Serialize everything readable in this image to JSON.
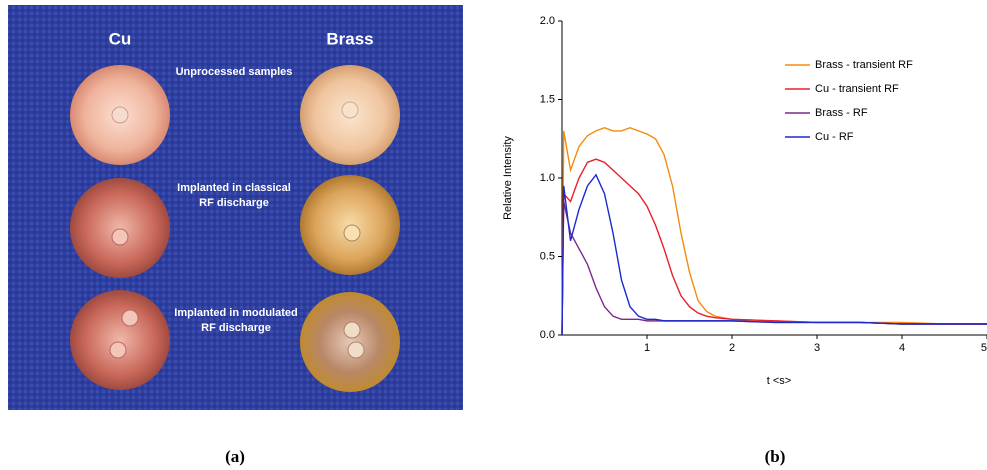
{
  "photo": {
    "column_labels": [
      "Cu",
      "Brass"
    ],
    "row_labels": [
      [
        "Unprocessed samples"
      ],
      [
        "Implanted in classical",
        "RF discharge"
      ],
      [
        "Implanted in modulated",
        "RF discharge"
      ]
    ],
    "caption": "(a)"
  },
  "chart_caption": "(b)",
  "chart_data": {
    "type": "line",
    "xlabel": "t <s>",
    "ylabel": "Relative Intensity",
    "x": [
      0,
      0.02,
      0.1,
      0.2,
      0.3,
      0.4,
      0.5,
      0.6,
      0.7,
      0.8,
      0.9,
      1.0,
      1.1,
      1.2,
      1.3,
      1.4,
      1.5,
      1.6,
      1.7,
      1.8,
      2.0,
      2.5,
      3,
      3.5,
      4,
      4.5,
      5
    ],
    "series": [
      {
        "name": "Brass - transient RF",
        "color": "#f58a0f",
        "values": [
          0,
          1.3,
          1.05,
          1.2,
          1.27,
          1.3,
          1.32,
          1.3,
          1.3,
          1.32,
          1.3,
          1.28,
          1.25,
          1.15,
          0.95,
          0.65,
          0.4,
          0.22,
          0.15,
          0.12,
          0.1,
          0.09,
          0.08,
          0.08,
          0.08,
          0.07,
          0.07
        ]
      },
      {
        "name": "Cu - transient RF",
        "color": "#e8202a",
        "values": [
          0,
          0.9,
          0.85,
          1.0,
          1.1,
          1.12,
          1.1,
          1.05,
          1.0,
          0.95,
          0.9,
          0.82,
          0.7,
          0.55,
          0.38,
          0.25,
          0.18,
          0.14,
          0.12,
          0.11,
          0.1,
          0.09,
          0.08,
          0.08,
          0.07,
          0.07,
          0.07
        ]
      },
      {
        "name": "Brass - RF",
        "color": "#7a2a8c",
        "values": [
          0,
          0.85,
          0.65,
          0.55,
          0.45,
          0.3,
          0.18,
          0.12,
          0.1,
          0.1,
          0.1,
          0.09,
          0.09,
          0.09,
          0.09,
          0.09,
          0.09,
          0.09,
          0.09,
          0.09,
          0.09,
          0.08,
          0.08,
          0.08,
          0.07,
          0.07,
          0.07
        ]
      },
      {
        "name": "Cu - RF",
        "color": "#1a2ad0",
        "values": [
          0,
          0.95,
          0.6,
          0.8,
          0.95,
          1.02,
          0.9,
          0.65,
          0.35,
          0.18,
          0.12,
          0.1,
          0.1,
          0.09,
          0.09,
          0.09,
          0.09,
          0.09,
          0.09,
          0.09,
          0.09,
          0.08,
          0.08,
          0.08,
          0.07,
          0.07,
          0.07
        ]
      }
    ],
    "xlim": [
      0,
      5
    ],
    "xticks": [
      1,
      2,
      3,
      4,
      5
    ],
    "ylim": [
      0,
      2
    ],
    "yticks": [
      {
        "value": 0,
        "label": "0.0"
      },
      0.5,
      {
        "value": 1,
        "label": "1.0"
      },
      1.5,
      {
        "value": 2,
        "label": "2.0"
      }
    ],
    "legend": "upper right"
  }
}
